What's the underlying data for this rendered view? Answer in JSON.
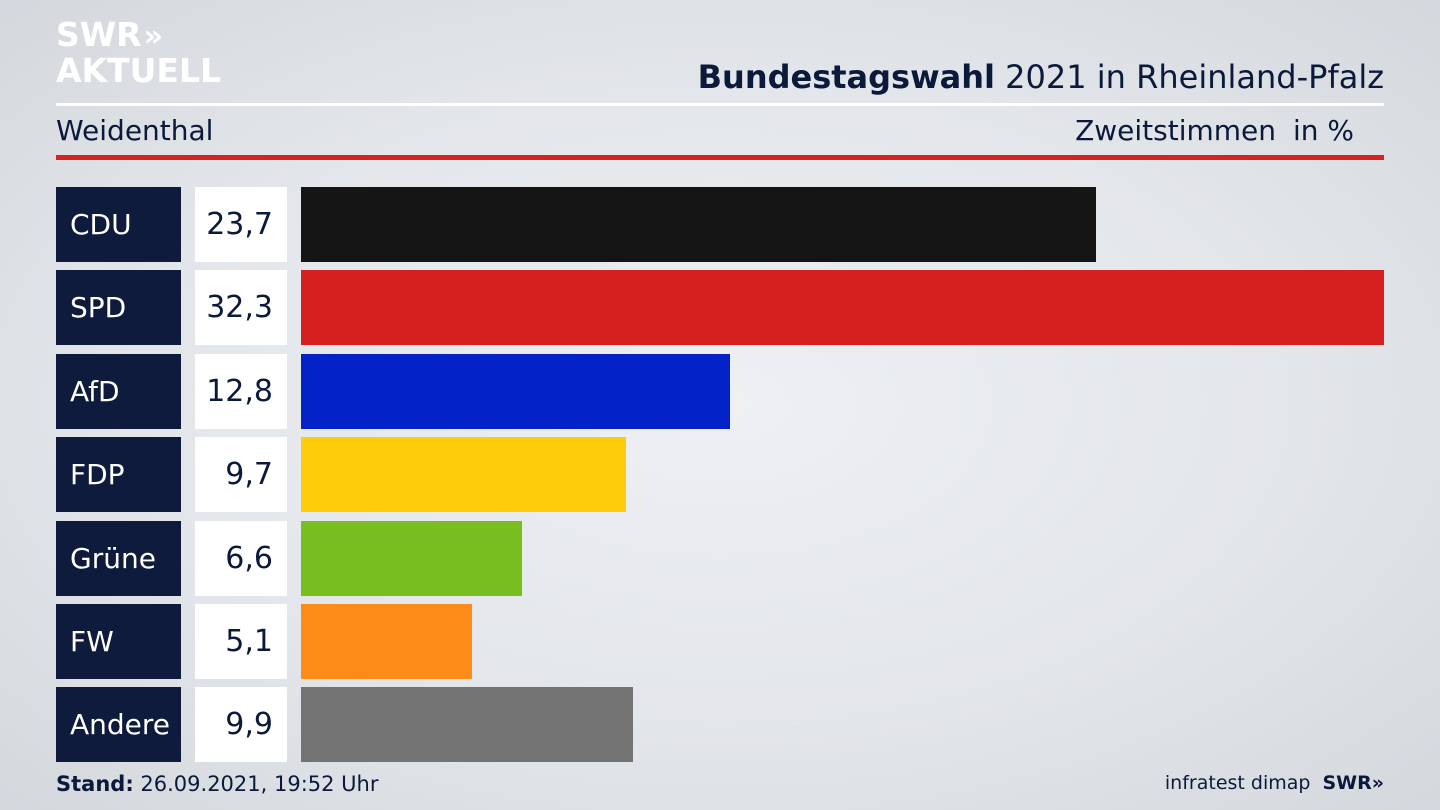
{
  "logo": {
    "line1": "SWR",
    "chevrons": "»",
    "line2": "AKTUELL"
  },
  "header": {
    "title_bold": "Bundestagswahl",
    "title_rest": " 2021 in Rheinland-Pfalz",
    "location": "Weidenthal",
    "metric": "Zweitstimmen",
    "unit": "in %"
  },
  "footer": {
    "stand_label": "Stand:",
    "stand_value": " 26.09.2021, 19:52 Uhr",
    "source": "infratest dimap",
    "brand": "SWR»"
  },
  "colors": {
    "accent_red": "#d5231f",
    "label_bg": "#0e1b3d"
  },
  "chart_data": {
    "type": "bar",
    "orientation": "horizontal",
    "categories": [
      "CDU",
      "SPD",
      "AfD",
      "FDP",
      "Grüne",
      "FW",
      "Andere"
    ],
    "values": [
      23.7,
      32.3,
      12.8,
      9.7,
      6.6,
      5.1,
      9.9
    ],
    "value_labels": [
      "23,7",
      "32,3",
      "12,8",
      "9,7",
      "6,6",
      "5,1",
      "9,9"
    ],
    "colors": [
      "#141414",
      "#d5201f",
      "#0322c8",
      "#fecc0b",
      "#78be1e",
      "#fd8b17",
      "#737373"
    ],
    "title": "Bundestagswahl 2021 in Rheinland-Pfalz",
    "xlabel": "",
    "ylabel": "",
    "xlim": [
      0,
      32.3
    ]
  }
}
